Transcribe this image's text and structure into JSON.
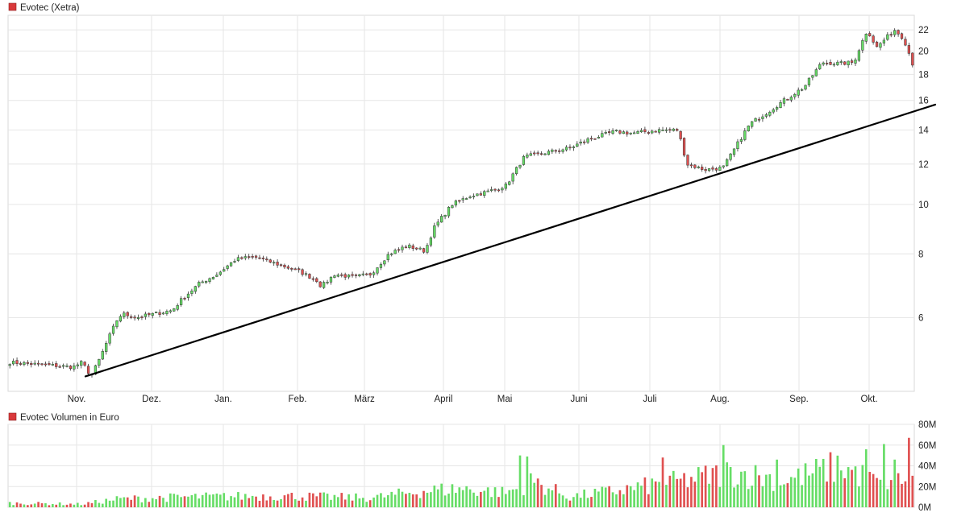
{
  "chart_data": [
    {
      "type": "candlestick",
      "title": "Evotec (Xetra)",
      "series_color": "#d9393b",
      "scale": "log",
      "ylim": [
        4.3,
        23.5
      ],
      "yticks": [
        6,
        8,
        10,
        12,
        14,
        16,
        18,
        20,
        22
      ],
      "ytick_labels": [
        "6",
        "8",
        "10",
        "12",
        "14",
        "16",
        "18",
        "20",
        "22"
      ],
      "months": [
        {
          "label": "Nov."
        },
        {
          "label": "Dez."
        },
        {
          "label": "Jan."
        },
        {
          "label": "Feb."
        },
        {
          "label": "März"
        },
        {
          "label": "April"
        },
        {
          "label": "Mai"
        },
        {
          "label": "Juni"
        },
        {
          "label": "Juli"
        },
        {
          "label": "Aug."
        },
        {
          "label": "Sep."
        },
        {
          "label": "Okt."
        }
      ],
      "up_color": "#66dd66",
      "down_color": "#e05050",
      "trendline": {
        "start_value": 4.6,
        "end_value": 15.7
      },
      "close_path": [
        [
          0,
          4.9
        ],
        [
          0.07,
          4.8
        ],
        [
          0.08,
          4.9
        ],
        [
          0.09,
          4.6
        ],
        [
          0.1,
          5.0
        ],
        [
          0.11,
          5.5
        ],
        [
          0.12,
          6.0
        ],
        [
          0.125,
          6.1
        ],
        [
          0.14,
          6.0
        ],
        [
          0.16,
          6.1
        ],
        [
          0.18,
          6.2
        ],
        [
          0.19,
          6.5
        ],
        [
          0.21,
          7.0
        ],
        [
          0.23,
          7.3
        ],
        [
          0.25,
          7.8
        ],
        [
          0.27,
          7.9
        ],
        [
          0.3,
          7.6
        ],
        [
          0.32,
          7.4
        ],
        [
          0.34,
          7.1
        ],
        [
          0.345,
          6.9
        ],
        [
          0.36,
          7.3
        ],
        [
          0.38,
          7.2
        ],
        [
          0.4,
          7.3
        ],
        [
          0.42,
          8.0
        ],
        [
          0.44,
          8.3
        ],
        [
          0.46,
          8.1
        ],
        [
          0.47,
          9.0
        ],
        [
          0.49,
          10.0
        ],
        [
          0.51,
          10.4
        ],
        [
          0.53,
          10.6
        ],
        [
          0.55,
          10.9
        ],
        [
          0.57,
          12.4
        ],
        [
          0.59,
          12.6
        ],
        [
          0.62,
          12.9
        ],
        [
          0.64,
          13.4
        ],
        [
          0.67,
          13.9
        ],
        [
          0.69,
          13.8
        ],
        [
          0.72,
          14.0
        ],
        [
          0.74,
          14.0
        ],
        [
          0.75,
          12.0
        ],
        [
          0.77,
          11.7
        ],
        [
          0.79,
          11.8
        ],
        [
          0.8,
          12.6
        ],
        [
          0.82,
          14.4
        ],
        [
          0.84,
          15.2
        ],
        [
          0.86,
          16.1
        ],
        [
          0.88,
          17.0
        ],
        [
          0.9,
          19.0
        ],
        [
          0.92,
          18.9
        ],
        [
          0.935,
          19.0
        ],
        [
          0.95,
          22.0
        ],
        [
          0.96,
          20.3
        ],
        [
          0.98,
          22.0
        ],
        [
          0.99,
          21.2
        ],
        [
          1.0,
          18.9
        ]
      ]
    },
    {
      "type": "bar",
      "title": "Evotec Volumen in Euro",
      "series_color": "#d9393b",
      "ylim": [
        0,
        80
      ],
      "yticks": [
        0,
        20,
        40,
        60,
        80
      ],
      "ytick_labels": [
        "0M",
        "20M",
        "40M",
        "60M",
        "80M"
      ],
      "up_color": "#66dd66",
      "down_color": "#e05050",
      "volume_profile": [
        [
          0,
          4
        ],
        [
          0.08,
          3
        ],
        [
          0.12,
          8
        ],
        [
          0.2,
          10
        ],
        [
          0.3,
          11
        ],
        [
          0.4,
          9
        ],
        [
          0.46,
          16
        ],
        [
          0.5,
          18
        ],
        [
          0.55,
          14
        ],
        [
          0.58,
          25
        ],
        [
          0.62,
          10
        ],
        [
          0.68,
          17
        ],
        [
          0.74,
          25
        ],
        [
          0.8,
          34
        ],
        [
          0.86,
          26
        ],
        [
          0.92,
          40
        ],
        [
          0.96,
          24
        ],
        [
          1.0,
          30
        ]
      ],
      "volume_spikes": [
        {
          "pos": 0.565,
          "value": 50
        },
        {
          "pos": 0.575,
          "value": 49
        },
        {
          "pos": 0.725,
          "value": 48
        },
        {
          "pos": 0.79,
          "value": 60
        },
        {
          "pos": 0.85,
          "value": 46
        },
        {
          "pos": 0.95,
          "value": 56
        },
        {
          "pos": 0.97,
          "value": 61
        },
        {
          "pos": 0.98,
          "value": 46
        },
        {
          "pos": 0.998,
          "value": 67
        }
      ]
    }
  ]
}
